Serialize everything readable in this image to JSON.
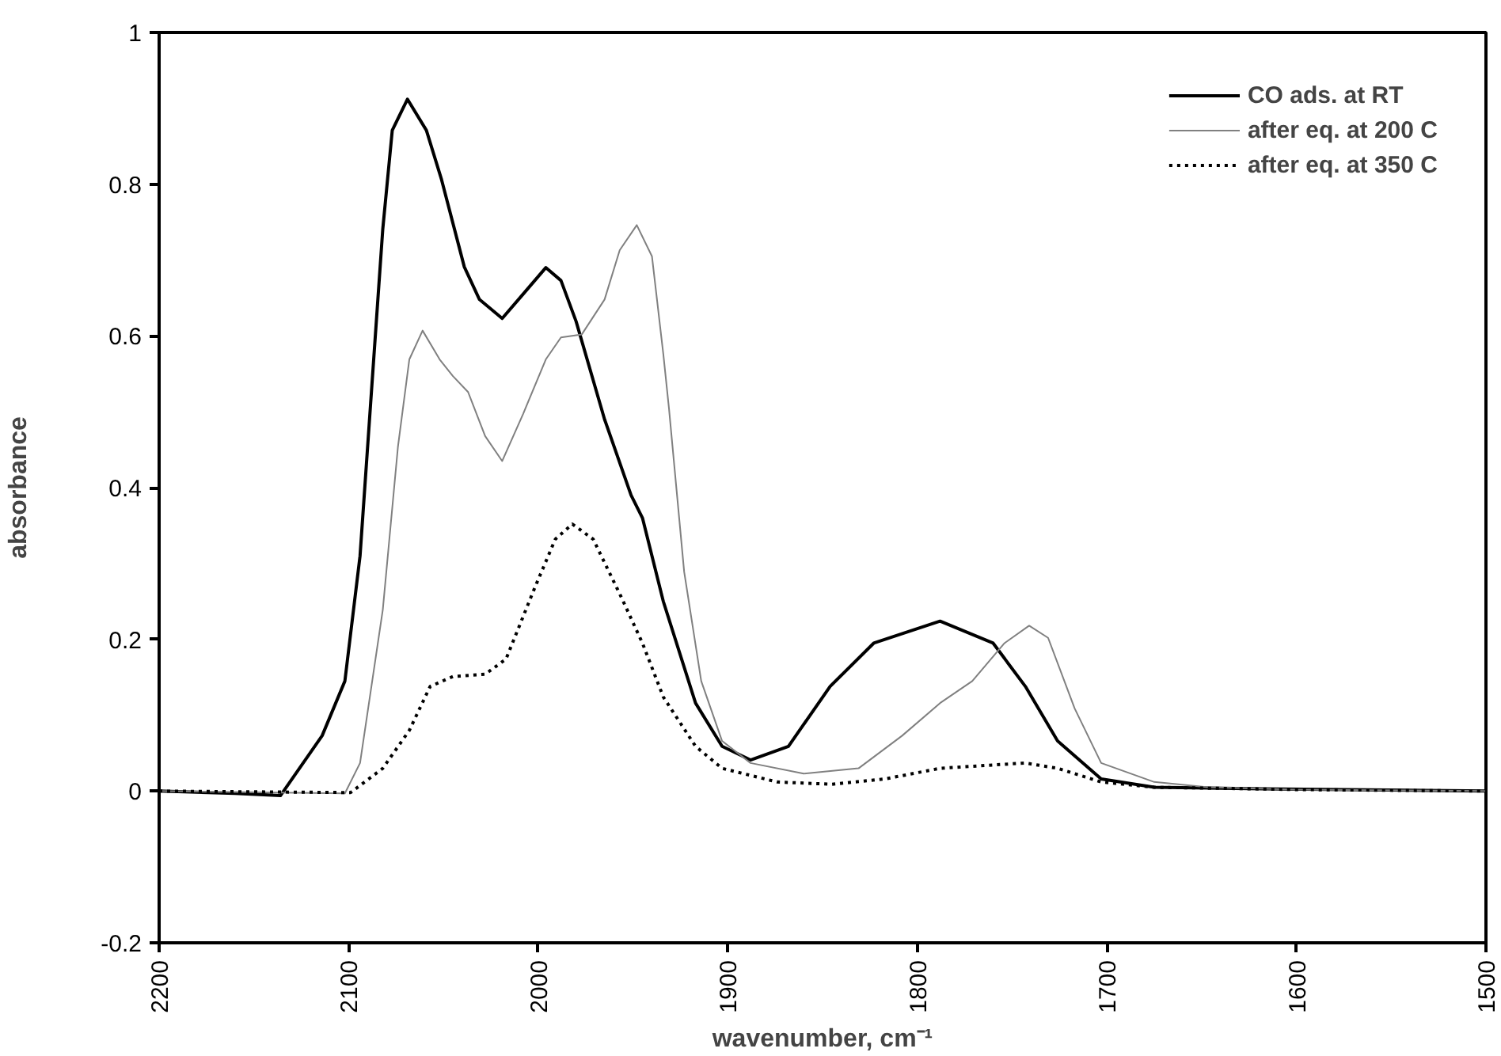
{
  "chart_data": {
    "type": "line",
    "xlabel": "wavenumber, cm⁻¹",
    "ylabel": "absorbance",
    "xlim": [
      2200,
      1500
    ],
    "xticks": [
      2200,
      2100,
      2000,
      1900,
      1800,
      1700,
      1600,
      1500
    ],
    "ylim": [
      -0.2,
      1
    ],
    "yticks": [
      -0.2,
      0,
      0.2,
      0.4,
      0.6,
      0.8,
      1
    ],
    "grid": false,
    "legend": "top right",
    "marker": "none",
    "series": [
      {
        "name": "CO ads. at RT",
        "color": "#000000",
        "line_style": "solid",
        "x": [
          2200,
          2160,
          2136,
          2114,
          2102,
          2094,
          2088,
          2082,
          2077,
          2069,
          2059,
          2051,
          2039,
          2031,
          2019,
          2008,
          1996,
          1988,
          1980,
          1965,
          1951,
          1945,
          1934,
          1917,
          1903,
          1888,
          1868,
          1846,
          1823,
          1788,
          1760,
          1743,
          1726,
          1703,
          1675,
          1617,
          1500
        ],
        "values": [
          0,
          -0.003,
          -0.006,
          0.073,
          0.145,
          0.31,
          0.526,
          0.741,
          0.871,
          0.912,
          0.871,
          0.806,
          0.691,
          0.648,
          0.623,
          0.655,
          0.69,
          0.673,
          0.619,
          0.49,
          0.39,
          0.36,
          0.25,
          0.116,
          0.059,
          0.041,
          0.059,
          0.138,
          0.195,
          0.224,
          0.195,
          0.138,
          0.066,
          0.016,
          0.005,
          0.003,
          0
        ]
      },
      {
        "name": "after eq. at 200 C",
        "color": "#808080",
        "line_style": "solid",
        "x": [
          2200,
          2102,
          2094,
          2082,
          2074,
          2068,
          2061,
          2052,
          2045,
          2037,
          2028,
          2019,
          2008,
          1996,
          1988,
          1977,
          1965,
          1957,
          1948,
          1940,
          1934,
          1931,
          1923,
          1914,
          1903,
          1888,
          1860,
          1831,
          1808,
          1788,
          1771,
          1754,
          1741,
          1731,
          1717,
          1703,
          1675,
          1646,
          1600,
          1500
        ],
        "values": [
          0,
          -0.003,
          0.037,
          0.239,
          0.454,
          0.569,
          0.607,
          0.569,
          0.547,
          0.526,
          0.468,
          0.435,
          0.497,
          0.569,
          0.598,
          0.602,
          0.648,
          0.713,
          0.746,
          0.705,
          0.576,
          0.504,
          0.289,
          0.145,
          0.066,
          0.037,
          0.023,
          0.03,
          0.073,
          0.116,
          0.145,
          0.195,
          0.218,
          0.202,
          0.109,
          0.037,
          0.012,
          0.005,
          0.002,
          0
        ]
      },
      {
        "name": "after eq. at 350 C",
        "color": "#000000",
        "line_style": "dotted",
        "x": [
          2200,
          2099,
          2082,
          2068,
          2057,
          2045,
          2028,
          2017,
          2002,
          1991,
          1982,
          1971,
          1957,
          1945,
          1934,
          1917,
          1903,
          1874,
          1845,
          1817,
          1788,
          1743,
          1726,
          1703,
          1675,
          1600,
          1500
        ],
        "values": [
          0,
          -0.002,
          0.03,
          0.08,
          0.138,
          0.151,
          0.154,
          0.174,
          0.267,
          0.332,
          0.352,
          0.332,
          0.26,
          0.195,
          0.124,
          0.059,
          0.03,
          0.012,
          0.009,
          0.016,
          0.03,
          0.037,
          0.03,
          0.012,
          0.005,
          0.002,
          0
        ]
      }
    ]
  }
}
